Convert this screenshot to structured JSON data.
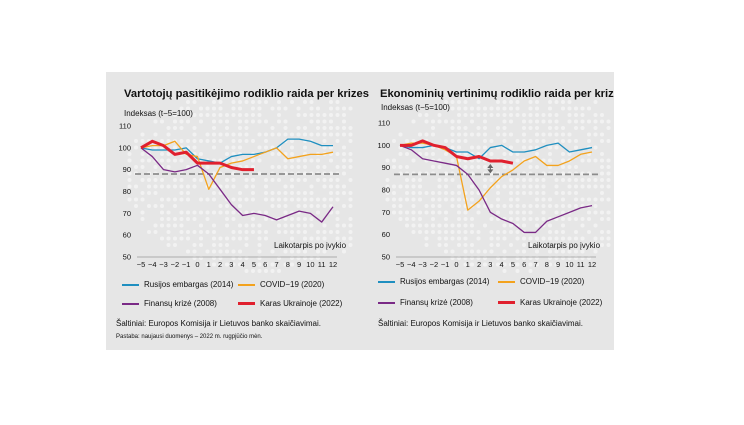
{
  "colors": {
    "rusijos": "#1f8fc0",
    "covid": "#f3a21d",
    "finansu": "#7a2a86",
    "karas": "#e0202e",
    "reference": "#8c8c8c",
    "background": "#e6e6e6"
  },
  "left": {
    "title": "Vartotojų pasitikėjimo rodiklio raida per krizes",
    "ylabel": "Indeksas (t−5=100)",
    "xlabel": "Laikotarpis po įvykio",
    "legend": {
      "rusijos": "Rusijos embargas (2014)",
      "covid": "COVID−19 (2020)",
      "finansu": "Finansų krizė (2008)",
      "karas": "Karas Ukrainoje (2022)"
    },
    "source": "Šaltiniai: Europos Komisija ir Lietuvos banko skaičiavimai.",
    "note": "Pastaba: naujausi duomenys – 2022 m. rugpjūčio mėn."
  },
  "right": {
    "title": "Ekonominių vertinimų rodiklio raida per krizes",
    "ylabel": "Indeksas (t−5=100)",
    "xlabel": "Laikotarpis po įvykio",
    "legend": {
      "rusijos": "Rusijos embargas (2014)",
      "covid": "COVID−19 (2020)",
      "finansu": "Finansų krizė (2008)",
      "karas": "Karas Ukrainoje (2022)"
    },
    "source": "Šaltiniai: Europos Komisija ir Lietuvos banko skaičiavimai."
  },
  "chart_data": [
    {
      "type": "line",
      "title": "Vartotojų pasitikėjimo rodiklio raida per krizes",
      "xlabel": "Laikotarpis po įvykio",
      "ylabel": "Indeksas (t−5=100)",
      "x": [
        -5,
        -4,
        -3,
        -2,
        -1,
        0,
        1,
        2,
        3,
        4,
        5,
        6,
        7,
        8,
        9,
        10,
        11,
        12
      ],
      "xticks": [
        "−5",
        "−4",
        "−3",
        "−2",
        "−1",
        "0",
        "1",
        "2",
        "3",
        "4",
        "5",
        "6",
        "7",
        "8",
        "9",
        "10",
        "11",
        "12"
      ],
      "yticks": [
        50,
        60,
        70,
        80,
        90,
        100,
        110
      ],
      "ylim": [
        50,
        110
      ],
      "xlim": [
        -5,
        12
      ],
      "reference_line": 88,
      "grid": false,
      "series": [
        {
          "name": "Rusijos embargas (2014)",
          "key": "rusijos",
          "values": [
            100,
            99,
            99,
            99,
            100,
            95,
            94,
            93,
            96,
            97,
            97,
            98,
            100,
            104,
            104,
            103,
            101,
            101
          ]
        },
        {
          "name": "COVID−19 (2020)",
          "key": "covid",
          "values": [
            100,
            101,
            101,
            103,
            97,
            96,
            81,
            91,
            93,
            94,
            96,
            98,
            100,
            95,
            96,
            97,
            97,
            98
          ]
        },
        {
          "name": "Finansų krizė (2008)",
          "key": "finansu",
          "values": [
            100,
            96,
            90,
            89,
            90,
            92,
            88,
            81,
            74,
            69,
            70,
            69,
            67,
            69,
            71,
            70,
            66,
            73
          ]
        },
        {
          "name": "Karas Ukrainoje (2022)",
          "key": "karas",
          "values": [
            100,
            103,
            101,
            97,
            98,
            93,
            93,
            93,
            91,
            90,
            90,
            null,
            null,
            null,
            null,
            null,
            null,
            null
          ]
        }
      ]
    },
    {
      "type": "line",
      "title": "Ekonominių vertinimų rodiklio raida per krizes",
      "xlabel": "Laikotarpis po įvykio",
      "ylabel": "Indeksas (t−5=100)",
      "x": [
        -5,
        -4,
        -3,
        -2,
        -1,
        0,
        1,
        2,
        3,
        4,
        5,
        6,
        7,
        8,
        9,
        10,
        11,
        12
      ],
      "xticks": [
        "−5",
        "−4",
        "−3",
        "−2",
        "−1",
        "0",
        "1",
        "2",
        "3",
        "4",
        "5",
        "6",
        "7",
        "8",
        "9",
        "10",
        "11",
        "12"
      ],
      "yticks": [
        50,
        60,
        70,
        80,
        90,
        100,
        110
      ],
      "ylim": [
        50,
        110
      ],
      "xlim": [
        -5,
        12
      ],
      "reference_line": 87,
      "grid": false,
      "series": [
        {
          "name": "Rusijos embargas (2014)",
          "key": "rusijos",
          "values": [
            100,
            99,
            99,
            100,
            99,
            97,
            97,
            94,
            99,
            100,
            97,
            97,
            98,
            100,
            101,
            97,
            98,
            99
          ]
        },
        {
          "name": "COVID−19 (2020)",
          "key": "covid",
          "values": [
            100,
            101,
            101,
            100,
            98,
            95,
            71,
            75,
            81,
            86,
            89,
            93,
            95,
            91,
            91,
            93,
            96,
            97
          ]
        },
        {
          "name": "Finansų krizė (2008)",
          "key": "finansu",
          "values": [
            100,
            98,
            94,
            93,
            92,
            91,
            87,
            80,
            70,
            67,
            65,
            61,
            61,
            66,
            68,
            70,
            72,
            73
          ]
        },
        {
          "name": "Karas Ukrainoje (2022)",
          "key": "karas",
          "values": [
            100,
            100,
            102,
            100,
            99,
            95,
            94,
            95,
            93,
            93,
            92,
            null,
            null,
            null,
            null,
            null,
            null,
            null
          ]
        }
      ]
    }
  ]
}
